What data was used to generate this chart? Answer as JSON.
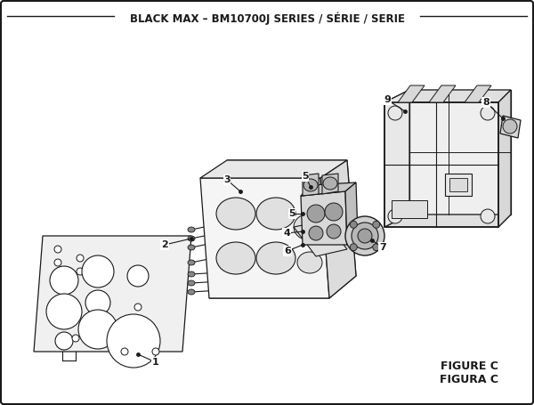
{
  "title": "BLACK MAX – BM10700J SERIES / SÉRIE / SERIE",
  "figure_label": "FIGURE C",
  "figura_label": "FIGURA C",
  "bg_color": "#ffffff",
  "line_color": "#1a1a1a",
  "title_fontsize": 8.5,
  "fig_label_fontsize": 9.0
}
